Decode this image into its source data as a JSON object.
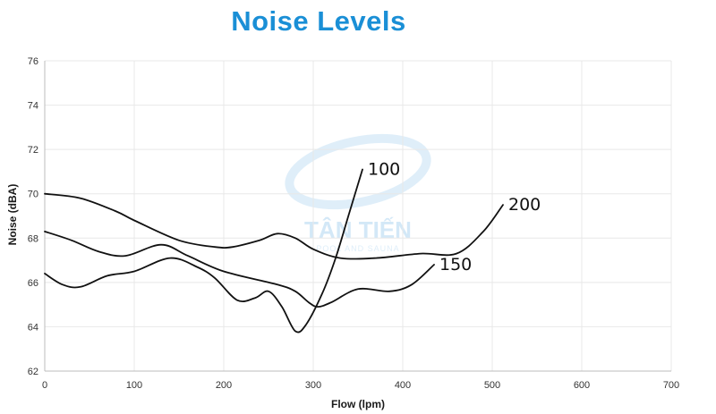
{
  "chart_data": {
    "type": "line",
    "title": "Noise Levels",
    "xlabel": "Flow (lpm)",
    "ylabel": "Noise (dBA)",
    "xlim": [
      0,
      700
    ],
    "ylim": [
      62,
      76
    ],
    "x_ticks": [
      0,
      100,
      200,
      300,
      400,
      500,
      600,
      700
    ],
    "y_ticks": [
      62,
      64,
      66,
      68,
      70,
      72,
      74,
      76
    ],
    "grid": true,
    "title_color": "#1a8fd6",
    "series": [
      {
        "name": "100",
        "points": [
          [
            0,
            66.4
          ],
          [
            20,
            65.9
          ],
          [
            40,
            65.8
          ],
          [
            70,
            66.3
          ],
          [
            100,
            66.5
          ],
          [
            140,
            67.1
          ],
          [
            170,
            66.7
          ],
          [
            190,
            66.2
          ],
          [
            215,
            65.2
          ],
          [
            235,
            65.3
          ],
          [
            250,
            65.6
          ],
          [
            265,
            64.9
          ],
          [
            280,
            63.8
          ],
          [
            292,
            64.1
          ],
          [
            310,
            65.5
          ],
          [
            325,
            67.1
          ],
          [
            340,
            69.1
          ],
          [
            355,
            71.1
          ]
        ]
      },
      {
        "name": "150",
        "points": [
          [
            0,
            68.3
          ],
          [
            30,
            67.9
          ],
          [
            60,
            67.4
          ],
          [
            90,
            67.2
          ],
          [
            130,
            67.7
          ],
          [
            160,
            67.2
          ],
          [
            200,
            66.5
          ],
          [
            260,
            65.9
          ],
          [
            280,
            65.6
          ],
          [
            295,
            65.1
          ],
          [
            305,
            64.9
          ],
          [
            320,
            65.1
          ],
          [
            350,
            65.7
          ],
          [
            385,
            65.6
          ],
          [
            410,
            65.9
          ],
          [
            435,
            66.8
          ]
        ]
      },
      {
        "name": "200",
        "points": [
          [
            0,
            70.0
          ],
          [
            40,
            69.8
          ],
          [
            80,
            69.2
          ],
          [
            100,
            68.8
          ],
          [
            150,
            67.9
          ],
          [
            190,
            67.6
          ],
          [
            210,
            67.6
          ],
          [
            240,
            67.9
          ],
          [
            260,
            68.2
          ],
          [
            280,
            68.0
          ],
          [
            300,
            67.5
          ],
          [
            330,
            67.1
          ],
          [
            370,
            67.1
          ],
          [
            420,
            67.3
          ],
          [
            460,
            67.3
          ],
          [
            490,
            68.3
          ],
          [
            512,
            69.5
          ]
        ]
      }
    ]
  },
  "watermark": {
    "brand": "TÂN TIẾN",
    "subtext": "POOL AND SAUNA"
  }
}
